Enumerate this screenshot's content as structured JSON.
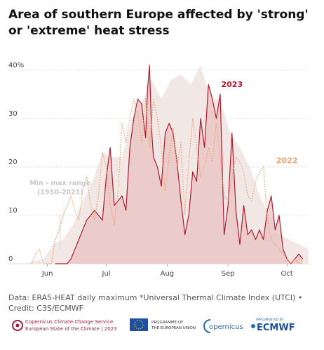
{
  "title": "Area of southern Europe affected by 'strong' or 'extreme' heat stress",
  "note": "Data: ERA5-HEAT daily maximum *Universal Thermal Climate Index (UTCI) • Credit: C3S/ECMWF",
  "footer": {
    "c3s_line1": "Copernicus Climate Change Service",
    "c3s_line2": "European State of the Climate | 2023",
    "eu_line1": "PROGRAMME OF",
    "eu_line2": "THE EUROPEAN UNION",
    "copernicus": "opernicus",
    "ecmwf_small": "IMPLEMENTED BY",
    "ecmwf": "ECMWF"
  },
  "colors": {
    "y2023": "#b01c2e",
    "y2022": "#f0a070",
    "range": "#f1e7e5",
    "fill2023": "#e8c3c1"
  },
  "chart_data": {
    "type": "area",
    "title": "Area of southern Europe affected by 'strong' or 'extreme' heat stress",
    "xlabel": "",
    "ylabel": "",
    "x_domain_day_of_year": [
      140,
      285
    ],
    "x_ticks": [
      {
        "label": "Jun",
        "day": 152
      },
      {
        "label": "Jul",
        "day": 182
      },
      {
        "label": "Aug",
        "day": 213
      },
      {
        "label": "Sep",
        "day": 244
      },
      {
        "label": "Oct",
        "day": 274
      }
    ],
    "ylim": [
      0,
      42
    ],
    "y_ticks": [
      {
        "value": 0,
        "label": "0"
      },
      {
        "value": 10,
        "label": "10"
      },
      {
        "value": 20,
        "label": "20"
      },
      {
        "value": 30,
        "label": "30"
      },
      {
        "value": 40,
        "label": "40%"
      }
    ],
    "grid": true,
    "legend": "inline labels",
    "range_label": [
      "Min - max range",
      "(1950-2021)"
    ],
    "series": [
      {
        "name": "Min - max range",
        "kind": "band",
        "x": [
          140,
          150,
          155,
          160,
          165,
          170,
          175,
          180,
          185,
          190,
          195,
          200,
          205,
          210,
          215,
          220,
          225,
          230,
          235,
          240,
          245,
          250,
          255,
          260,
          265,
          270,
          275,
          280,
          285
        ],
        "max": [
          0,
          1,
          4,
          5,
          8,
          13,
          17,
          23,
          22,
          22,
          30,
          33,
          38,
          34,
          38,
          39,
          37,
          41,
          34,
          34,
          27,
          24,
          20,
          14,
          10,
          6,
          5,
          4,
          3
        ],
        "min": [
          0,
          0,
          0,
          0,
          0,
          0,
          0,
          0,
          0,
          0,
          0,
          0,
          0,
          0,
          0,
          0,
          0,
          0,
          0,
          0,
          0,
          0,
          0,
          0,
          0,
          0,
          0,
          0,
          0
        ]
      },
      {
        "name": "2022",
        "kind": "dotted",
        "x": [
          144,
          146,
          148,
          150,
          152,
          154,
          156,
          158,
          160,
          162,
          164,
          166,
          168,
          170,
          172,
          174,
          176,
          178,
          180,
          182,
          184,
          186,
          188,
          190,
          192,
          194,
          196,
          198,
          200,
          202,
          204,
          206,
          208,
          210,
          212,
          214,
          216,
          218,
          220,
          222,
          224,
          226,
          228,
          230,
          232,
          234,
          236,
          238,
          240,
          242,
          244,
          246,
          248,
          250,
          252,
          254,
          256,
          258,
          260,
          262,
          264,
          266,
          268,
          270,
          272,
          274,
          276,
          278,
          280,
          282
        ],
        "values": [
          0,
          2,
          3,
          0,
          0,
          0,
          5,
          7,
          10,
          12,
          14,
          11,
          9,
          15,
          18,
          12,
          9,
          14,
          23,
          20,
          12,
          8,
          15,
          29,
          25,
          30,
          34,
          31,
          25,
          34,
          24,
          34,
          30,
          24,
          15,
          22,
          28,
          20,
          25,
          10,
          21,
          30,
          24,
          18,
          20,
          24,
          21,
          29,
          22,
          14,
          13,
          18,
          22,
          21,
          19,
          14,
          13,
          17,
          19,
          20,
          9,
          5,
          4,
          3,
          2,
          1,
          0,
          1,
          0,
          0
        ]
      },
      {
        "name": "2023",
        "kind": "solid-filled",
        "x": [
          156,
          158,
          160,
          162,
          164,
          166,
          168,
          170,
          172,
          174,
          176,
          178,
          180,
          182,
          184,
          186,
          188,
          190,
          192,
          194,
          196,
          198,
          200,
          202,
          203,
          204,
          205,
          206,
          208,
          210,
          212,
          214,
          216,
          218,
          220,
          222,
          224,
          226,
          228,
          230,
          232,
          234,
          236,
          238,
          240,
          242,
          244,
          246,
          248,
          250,
          252,
          254,
          256,
          258,
          260,
          262,
          264,
          266,
          268,
          270,
          272,
          274,
          276,
          278,
          280,
          282
        ],
        "values": [
          0,
          0,
          0,
          0,
          1,
          3,
          5,
          7,
          9,
          10,
          11,
          10,
          9,
          18,
          24,
          12,
          13,
          14,
          11,
          24,
          30,
          34,
          33,
          26,
          36,
          41,
          28,
          22,
          20,
          16,
          27,
          29,
          27,
          21,
          13,
          6,
          10,
          19,
          17,
          30,
          24,
          37,
          34,
          30,
          35,
          6,
          12,
          27,
          11,
          4,
          12,
          6,
          7,
          5,
          7,
          5,
          11,
          14,
          7,
          10,
          3,
          1,
          0,
          1,
          2,
          1
        ]
      }
    ],
    "annotations": [
      {
        "text": "2023",
        "series": "2023"
      },
      {
        "text": "2022",
        "series": "2022"
      }
    ]
  }
}
